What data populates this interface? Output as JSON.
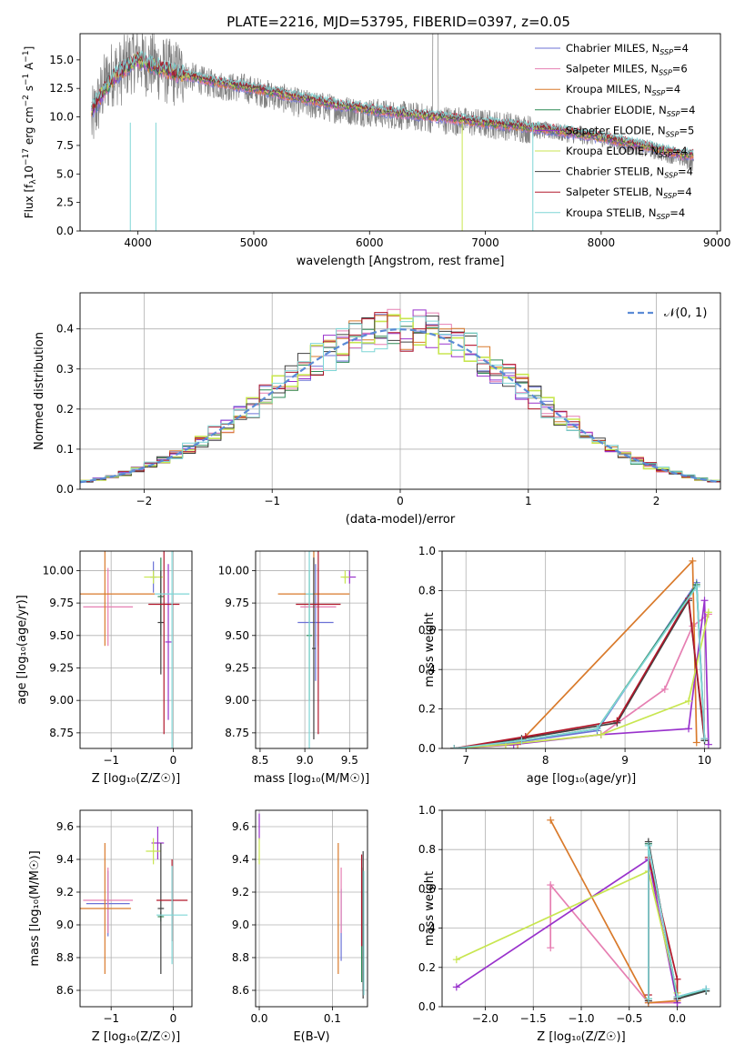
{
  "figure": {
    "title": "PLATE=2216, MJD=53795, FIBERID=0397, z=0.05"
  },
  "models": [
    {
      "name": "Chabrier MILES",
      "color": "#6b72d6",
      "nssp": "4",
      "legend_label": "Chabrier MILES, N",
      "legend_sub": "SSP",
      "legend_value": "=4"
    },
    {
      "name": "Salpeter MILES",
      "color": "#e67fb2",
      "nssp": "6",
      "legend_label": "Salpeter MILES, N",
      "legend_sub": "SSP",
      "legend_value": "=6"
    },
    {
      "name": "Kroupa MILES",
      "color": "#d97a2b",
      "nssp": "4",
      "legend_label": "Kroupa MILES, N",
      "legend_sub": "SSP",
      "legend_value": "=4"
    },
    {
      "name": "Chabrier ELODIE",
      "color": "#2e8b57",
      "nssp": "4",
      "legend_label": "Chabrier ELODIE, N",
      "legend_sub": "SSP",
      "legend_value": "=4"
    },
    {
      "name": "Salpeter ELODIE",
      "color": "#9932cc",
      "nssp": "5",
      "legend_label": "Salpeter ELODIE, N",
      "legend_sub": "SSP",
      "legend_value": "=5"
    },
    {
      "name": "Kroupa ELODIE",
      "color": "#c8e650",
      "nssp": "4",
      "legend_label": "Kroupa ELODIE, N",
      "legend_sub": "SSP",
      "legend_value": "=4"
    },
    {
      "name": "Chabrier STELIB",
      "color": "#404040",
      "nssp": "4",
      "legend_label": "Chabrier STELIB, N",
      "legend_sub": "SSP",
      "legend_value": "=4"
    },
    {
      "name": "Salpeter STELIB",
      "color": "#b2182b",
      "nssp": "4",
      "legend_label": "Salpeter STELIB, N",
      "legend_sub": "SSP",
      "legend_value": "=4"
    },
    {
      "name": "Kroupa STELIB",
      "color": "#7fd6d6",
      "nssp": "4",
      "legend_label": "Kroupa STELIB, N",
      "legend_sub": "SSP",
      "legend_value": "=4"
    }
  ],
  "chart_data": [
    {
      "id": "spectrum",
      "type": "line",
      "xlabel": "wavelength [Angstrom, rest frame]",
      "ylabel_parts": {
        "pre": "Flux [f",
        "sub1": "λ",
        "mid": "10",
        "sup1": "−17",
        "post": " erg cm",
        "sup2": "−2",
        "post2": " s",
        "sup3": "−1",
        "post3": " A",
        "sup4": "−1",
        "end": "]"
      },
      "xlim": [
        3500,
        9030
      ],
      "ylim": [
        0,
        17.3
      ],
      "xticks": [
        4000,
        5000,
        6000,
        7000,
        8000,
        9000
      ],
      "yticks": [
        0.0,
        2.5,
        5.0,
        7.5,
        10.0,
        12.5,
        15.0
      ],
      "ytick_labels": [
        "0.0",
        "2.5",
        "5.0",
        "7.5",
        "10.0",
        "12.5",
        "15.0"
      ],
      "data_color": "#808080",
      "data_trace": {
        "x": [
          3600,
          3650,
          3700,
          3750,
          3800,
          3850,
          3900,
          3950,
          4000,
          4050,
          4100,
          4150,
          4200,
          4250,
          4300,
          4350,
          4400,
          4500,
          4600,
          4700,
          4800,
          4900,
          5000,
          5200,
          5400,
          5600,
          5800,
          6000,
          6200,
          6400,
          6600,
          6800,
          7000,
          7200,
          7400,
          7600,
          7800,
          8000,
          8200,
          8400,
          8600,
          8800
        ],
        "y": [
          9.5,
          11.0,
          12.5,
          13.5,
          14.0,
          13.8,
          14.5,
          15.0,
          15.2,
          14.8,
          14.6,
          14.5,
          14.2,
          14.0,
          13.8,
          13.9,
          13.7,
          13.4,
          13.0,
          12.8,
          12.6,
          12.6,
          12.3,
          11.8,
          11.2,
          10.9,
          10.6,
          10.4,
          10.2,
          10.0,
          9.8,
          9.6,
          9.4,
          9.2,
          8.9,
          8.7,
          8.4,
          8.2,
          7.6,
          7.2,
          6.7,
          6.0
        ]
      },
      "model_trace": {
        "x": [
          3600,
          3700,
          3800,
          3900,
          4000,
          4100,
          4200,
          4300,
          4400,
          4500,
          4700,
          4900,
          5100,
          5300,
          5500,
          5700,
          5900,
          6100,
          6300,
          6500,
          6700,
          6900,
          7100,
          7300,
          7500,
          7700,
          7900,
          8100,
          8300,
          8500,
          8700
        ],
        "y": [
          10.5,
          12.2,
          13.6,
          14.4,
          15.0,
          14.6,
          14.3,
          13.9,
          13.7,
          13.5,
          13.0,
          12.7,
          12.3,
          11.9,
          11.5,
          11.1,
          10.8,
          10.5,
          10.3,
          10.1,
          9.9,
          9.6,
          9.4,
          9.2,
          9.0,
          8.7,
          8.4,
          8.0,
          7.6,
          7.2,
          6.7
        ]
      }
    },
    {
      "id": "residuals",
      "type": "area",
      "xlabel": "(data-model)/error",
      "ylabel": "Normed distribution",
      "xlim": [
        -2.5,
        2.5
      ],
      "ylim": [
        0,
        0.49
      ],
      "xticks": [
        -2,
        -1,
        0,
        1,
        2
      ],
      "xtick_labels": [
        "−2",
        "−1",
        "0",
        "1",
        "2"
      ],
      "yticks": [
        0.0,
        0.1,
        0.2,
        0.3,
        0.4
      ],
      "ytick_labels": [
        "0.0",
        "0.1",
        "0.2",
        "0.3",
        "0.4"
      ],
      "reference_curve": {
        "label": "𝒩(0, 1)",
        "color": "#5b8bd6",
        "mu": 0,
        "sigma": 1
      },
      "hist_bin_width": 0.1,
      "hist_range": [
        -2.5,
        2.5
      ]
    },
    {
      "id": "age_vs_Z",
      "type": "scatter",
      "xlabel": "Z [log₁₀(Z/Z☉)]",
      "ylabel": "age  [log₁₀(age/yr)]",
      "xlim": [
        -1.5,
        0.3
      ],
      "ylim": [
        8.63,
        10.15
      ],
      "xticks": [
        -1,
        0
      ],
      "xtick_labels": [
        "−1",
        "0"
      ],
      "yticks": [
        8.75,
        9.0,
        9.25,
        9.5,
        9.75,
        10.0
      ],
      "ytick_labels": [
        "8.75",
        "9.00",
        "9.25",
        "9.50",
        "9.75",
        "10.00"
      ],
      "points": [
        {
          "model": 0,
          "x": -0.32,
          "xerr": 0.05,
          "y": 9.95,
          "yerr": 0.12
        },
        {
          "model": 1,
          "x": -1.05,
          "xerr": 0.4,
          "y": 9.72,
          "yerr": 0.3
        },
        {
          "model": 2,
          "x": -1.1,
          "xerr": 0.8,
          "y": 9.82,
          "yerr": 0.4
        },
        {
          "model": 3,
          "x": -0.2,
          "xerr": 0.05,
          "y": 9.8,
          "yerr": 0.3
        },
        {
          "model": 4,
          "x": -0.08,
          "xerr": 0.05,
          "y": 9.45,
          "yerr": 0.6
        },
        {
          "model": 5,
          "x": -0.32,
          "xerr": 0.15,
          "y": 9.95,
          "yerr": 0.05
        },
        {
          "model": 6,
          "x": -0.2,
          "xerr": 0.05,
          "y": 9.6,
          "yerr": 0.4
        },
        {
          "model": 7,
          "x": -0.15,
          "xerr": 0.25,
          "y": 9.74,
          "yerr": 1.0
        },
        {
          "model": 8,
          "x": -0.02,
          "xerr": 0.28,
          "y": 9.82,
          "yerr": 1.2
        }
      ]
    },
    {
      "id": "age_vs_mass",
      "type": "scatter",
      "xlabel": "mass [log₁₀(M/M☉)]",
      "ylabel": "",
      "xlim": [
        8.45,
        9.7
      ],
      "ylim": [
        8.63,
        10.15
      ],
      "xticks": [
        8.5,
        9.0,
        9.5
      ],
      "xtick_labels": [
        "8.5",
        "9.0",
        "9.5"
      ],
      "yticks": [
        8.75,
        9.0,
        9.25,
        9.5,
        9.75,
        10.0
      ],
      "ytick_labels": [
        "8.75",
        "9.00",
        "9.25",
        "9.50",
        "9.75",
        "10.00"
      ],
      "points": [
        {
          "model": 0,
          "x": 9.12,
          "xerr": 0.2,
          "y": 9.6,
          "yerr": 0.45
        },
        {
          "model": 1,
          "x": 9.15,
          "xerr": 0.2,
          "y": 9.72,
          "yerr": 0.3
        },
        {
          "model": 2,
          "x": 9.1,
          "xerr": 0.4,
          "y": 9.82,
          "yerr": 0.4
        },
        {
          "model": 3,
          "x": 9.05,
          "xerr": 0.03,
          "y": 9.5,
          "yerr": 0.5
        },
        {
          "model": 4,
          "x": 9.5,
          "xerr": 0.07,
          "y": 9.95,
          "yerr": 0.05
        },
        {
          "model": 5,
          "x": 9.45,
          "xerr": 0.05,
          "y": 9.95,
          "yerr": 0.05
        },
        {
          "model": 6,
          "x": 9.1,
          "xerr": 0.02,
          "y": 9.4,
          "yerr": 0.7
        },
        {
          "model": 7,
          "x": 9.15,
          "xerr": 0.25,
          "y": 9.74,
          "yerr": 1.0
        },
        {
          "model": 8,
          "x": 9.05,
          "xerr": 0.04,
          "y": 9.82,
          "yerr": 1.2
        }
      ]
    },
    {
      "id": "weight_vs_age",
      "type": "line",
      "xlabel": "age  [log₁₀(age/yr)]",
      "ylabel": "mass weight",
      "xlim": [
        6.7,
        10.2
      ],
      "ylim": [
        0,
        1.0
      ],
      "xticks": [
        7,
        8,
        9,
        10
      ],
      "xtick_labels": [
        "7",
        "8",
        "9",
        "10"
      ],
      "yticks": [
        0.0,
        0.2,
        0.4,
        0.6,
        0.8,
        1.0
      ],
      "ytick_labels": [
        "0.0",
        "0.2",
        "0.4",
        "0.6",
        "0.8",
        "1.0"
      ],
      "series": [
        {
          "model": 0,
          "x": [
            6.85,
            7.6,
            8.65,
            9.9,
            10.0
          ],
          "y": [
            0.0,
            0.03,
            0.09,
            0.84,
            0.05
          ]
        },
        {
          "model": 1,
          "x": [
            6.85,
            7.5,
            8.7,
            9.5,
            9.85,
            10.05
          ],
          "y": [
            0.0,
            0.02,
            0.07,
            0.3,
            0.62,
            0.68
          ]
        },
        {
          "model": 2,
          "x": [
            6.85,
            7.65,
            9.85,
            9.9
          ],
          "y": [
            0.0,
            0.02,
            0.95,
            0.03
          ]
        },
        {
          "model": 3,
          "x": [
            6.85,
            7.7,
            8.65,
            9.9,
            10.0
          ],
          "y": [
            0.0,
            0.04,
            0.1,
            0.83,
            0.04
          ]
        },
        {
          "model": 4,
          "x": [
            6.85,
            7.6,
            8.7,
            9.8,
            10.0,
            10.05
          ],
          "y": [
            0.0,
            0.02,
            0.07,
            0.1,
            0.75,
            0.02
          ]
        },
        {
          "model": 5,
          "x": [
            6.85,
            7.5,
            8.7,
            9.8,
            10.05
          ],
          "y": [
            0.0,
            0.02,
            0.07,
            0.24,
            0.69
          ]
        },
        {
          "model": 6,
          "x": [
            6.85,
            7.7,
            8.9,
            9.8,
            10.0
          ],
          "y": [
            0.0,
            0.05,
            0.13,
            0.75,
            0.04
          ]
        },
        {
          "model": 7,
          "x": [
            6.85,
            7.75,
            8.9,
            9.8,
            10.0
          ],
          "y": [
            0.0,
            0.06,
            0.14,
            0.76,
            0.05
          ]
        },
        {
          "model": 8,
          "x": [
            6.85,
            7.7,
            8.65,
            9.9,
            10.0
          ],
          "y": [
            0.0,
            0.04,
            0.1,
            0.82,
            0.05
          ]
        }
      ]
    },
    {
      "id": "mass_vs_Z",
      "type": "scatter",
      "xlabel": "Z [log₁₀(Z/Z☉)]",
      "ylabel": "mass [log₁₀(M/M☉)]",
      "xlim": [
        -1.5,
        0.3
      ],
      "ylim": [
        8.5,
        9.7
      ],
      "xticks": [
        -1,
        0
      ],
      "xtick_labels": [
        "−1",
        "0"
      ],
      "yticks": [
        8.6,
        8.8,
        9.0,
        9.2,
        9.4,
        9.6
      ],
      "ytick_labels": [
        "8.6",
        "8.8",
        "9.0",
        "9.2",
        "9.4",
        "9.6"
      ],
      "points": [
        {
          "model": 0,
          "x": -1.05,
          "xerr": 0.35,
          "y": 9.13,
          "yerr": 0.2
        },
        {
          "model": 1,
          "x": -1.05,
          "xerr": 0.4,
          "y": 9.15,
          "yerr": 0.2
        },
        {
          "model": 2,
          "x": -1.1,
          "xerr": 0.42,
          "y": 9.1,
          "yerr": 0.4
        },
        {
          "model": 3,
          "x": -0.2,
          "xerr": 0.05,
          "y": 9.05,
          "yerr": 0.03
        },
        {
          "model": 4,
          "x": -0.25,
          "xerr": 0.1,
          "y": 9.5,
          "yerr": 0.1
        },
        {
          "model": 5,
          "x": -0.32,
          "xerr": 0.12,
          "y": 9.45,
          "yerr": 0.08
        },
        {
          "model": 6,
          "x": -0.2,
          "xerr": 0.05,
          "y": 9.1,
          "yerr": 0.4
        },
        {
          "model": 7,
          "x": -0.02,
          "xerr": 0.25,
          "y": 9.15,
          "yerr": 0.25
        },
        {
          "model": 8,
          "x": -0.02,
          "xerr": 0.25,
          "y": 9.06,
          "yerr": 0.3
        }
      ]
    },
    {
      "id": "mass_vs_EBV",
      "type": "scatter",
      "xlabel": "E(B-V)",
      "ylabel": "",
      "xlim": [
        -0.005,
        0.148
      ],
      "ylim": [
        8.5,
        9.7
      ],
      "xticks": [
        0.0,
        0.1
      ],
      "xtick_labels": [
        "0.0",
        "0.1"
      ],
      "yticks": [
        8.6,
        8.8,
        9.0,
        9.2,
        9.4,
        9.6
      ],
      "ytick_labels": [
        "8.6",
        "8.8",
        "9.0",
        "9.2",
        "9.4",
        "9.6"
      ],
      "points": [
        {
          "model": 0,
          "x": 0.112,
          "xerr": 0,
          "y": 9.0,
          "yerr": 0.22
        },
        {
          "model": 1,
          "x": 0.112,
          "xerr": 0,
          "y": 9.15,
          "yerr": 0.2
        },
        {
          "model": 2,
          "x": 0.108,
          "xerr": 0,
          "y": 9.1,
          "yerr": 0.4
        },
        {
          "model": 3,
          "x": 0.14,
          "xerr": 0,
          "y": 9.0,
          "yerr": 0.35
        },
        {
          "model": 4,
          "x": 0.0,
          "xerr": 0,
          "y": 9.6,
          "yerr": 0.08
        },
        {
          "model": 5,
          "x": 0.0,
          "xerr": 0,
          "y": 9.45,
          "yerr": 0.08
        },
        {
          "model": 6,
          "x": 0.142,
          "xerr": 0,
          "y": 9.0,
          "yerr": 0.45
        },
        {
          "model": 7,
          "x": 0.14,
          "xerr": 0,
          "y": 9.15,
          "yerr": 0.28
        },
        {
          "model": 8,
          "x": 0.143,
          "xerr": 0,
          "y": 8.95,
          "yerr": 0.38
        }
      ]
    },
    {
      "id": "weight_vs_Z",
      "type": "line",
      "xlabel": "Z [log₁₀(Z/Z☉)]",
      "ylabel": "mass weight",
      "xlim": [
        -2.45,
        0.45
      ],
      "ylim": [
        0,
        1.0
      ],
      "xticks": [
        -2.0,
        -1.5,
        -1.0,
        -0.5,
        0.0
      ],
      "xtick_labels": [
        "−2.0",
        "−1.5",
        "−1.0",
        "−0.5",
        "0.0"
      ],
      "yticks": [
        0.0,
        0.2,
        0.4,
        0.6,
        0.8,
        1.0
      ],
      "ytick_labels": [
        "0.0",
        "0.2",
        "0.4",
        "0.6",
        "0.8",
        "1.0"
      ],
      "series": [
        {
          "model": 0,
          "x": [
            -0.3,
            -0.3,
            0.0,
            0.3
          ],
          "y": [
            0.03,
            0.83,
            0.05,
            0.09
          ]
        },
        {
          "model": 1,
          "x": [
            -1.32,
            -1.32,
            -0.3,
            0.0
          ],
          "y": [
            0.3,
            0.62,
            0.02,
            0.02
          ]
        },
        {
          "model": 2,
          "x": [
            -1.32,
            -0.3,
            0.0
          ],
          "y": [
            0.95,
            0.02,
            0.03
          ]
        },
        {
          "model": 3,
          "x": [
            -0.3,
            -0.3,
            0.0,
            0.3
          ],
          "y": [
            0.04,
            0.83,
            0.05,
            0.08
          ]
        },
        {
          "model": 4,
          "x": [
            -2.3,
            -0.3,
            0.0,
            0.0
          ],
          "y": [
            0.1,
            0.75,
            0.02,
            0.02
          ]
        },
        {
          "model": 5,
          "x": [
            -2.3,
            -0.3,
            0.0
          ],
          "y": [
            0.24,
            0.69,
            0.07
          ]
        },
        {
          "model": 6,
          "x": [
            -0.3,
            -0.3,
            0.0,
            0.3
          ],
          "y": [
            0.03,
            0.84,
            0.04,
            0.08
          ]
        },
        {
          "model": 7,
          "x": [
            -0.3,
            -0.3,
            0.0,
            0.0
          ],
          "y": [
            0.06,
            0.76,
            0.14,
            0.05
          ]
        },
        {
          "model": 8,
          "x": [
            -0.3,
            -0.3,
            0.0,
            0.3
          ],
          "y": [
            0.04,
            0.82,
            0.05,
            0.09
          ]
        }
      ]
    }
  ]
}
